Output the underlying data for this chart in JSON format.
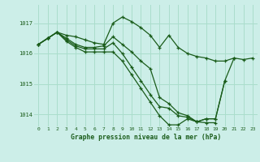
{
  "title": "Graphe pression niveau de la mer (hPa)",
  "bg_color": "#cceee8",
  "grid_color": "#aaddcc",
  "line_color": "#1a5c1a",
  "xlim": [
    -0.5,
    23.5
  ],
  "ylim": [
    1013.6,
    1017.6
  ],
  "yticks": [
    1014,
    1015,
    1016,
    1017
  ],
  "xticks": [
    0,
    1,
    2,
    3,
    4,
    5,
    6,
    7,
    8,
    9,
    10,
    11,
    12,
    13,
    14,
    15,
    16,
    17,
    18,
    19,
    20,
    21,
    22,
    23
  ],
  "series": [
    [
      1016.3,
      1016.5,
      1016.7,
      1016.6,
      1016.55,
      1016.45,
      1016.35,
      1016.3,
      1017.0,
      1017.2,
      1017.05,
      1016.85,
      1016.6,
      1016.2,
      1016.6,
      1016.2,
      1016.0,
      1015.9,
      1015.85,
      1015.75,
      1015.75,
      1015.85,
      1015.8,
      1015.85
    ],
    [
      1016.3,
      1016.5,
      1016.7,
      1016.5,
      1016.3,
      1016.2,
      1016.2,
      1016.25,
      1016.55,
      1016.3,
      1016.05,
      1015.75,
      1015.5,
      1014.55,
      1014.35,
      1014.05,
      1013.95,
      1013.75,
      1013.85,
      1013.85,
      1015.1,
      1015.85,
      null,
      null
    ],
    [
      1016.3,
      1016.5,
      1016.7,
      1016.45,
      1016.25,
      1016.15,
      1016.15,
      1016.15,
      1016.35,
      1016.0,
      1015.55,
      1015.1,
      1014.65,
      1014.25,
      1014.2,
      1013.95,
      1013.9,
      1013.75,
      1013.85,
      1013.85,
      1015.1,
      null,
      null,
      null
    ],
    [
      1016.3,
      1016.5,
      1016.7,
      1016.4,
      1016.2,
      1016.05,
      1016.05,
      1016.05,
      1016.05,
      1015.75,
      1015.3,
      1014.85,
      1014.4,
      1013.95,
      1013.65,
      1013.65,
      1013.85,
      1013.75,
      1013.72,
      1013.72,
      null,
      null,
      null,
      null
    ]
  ]
}
